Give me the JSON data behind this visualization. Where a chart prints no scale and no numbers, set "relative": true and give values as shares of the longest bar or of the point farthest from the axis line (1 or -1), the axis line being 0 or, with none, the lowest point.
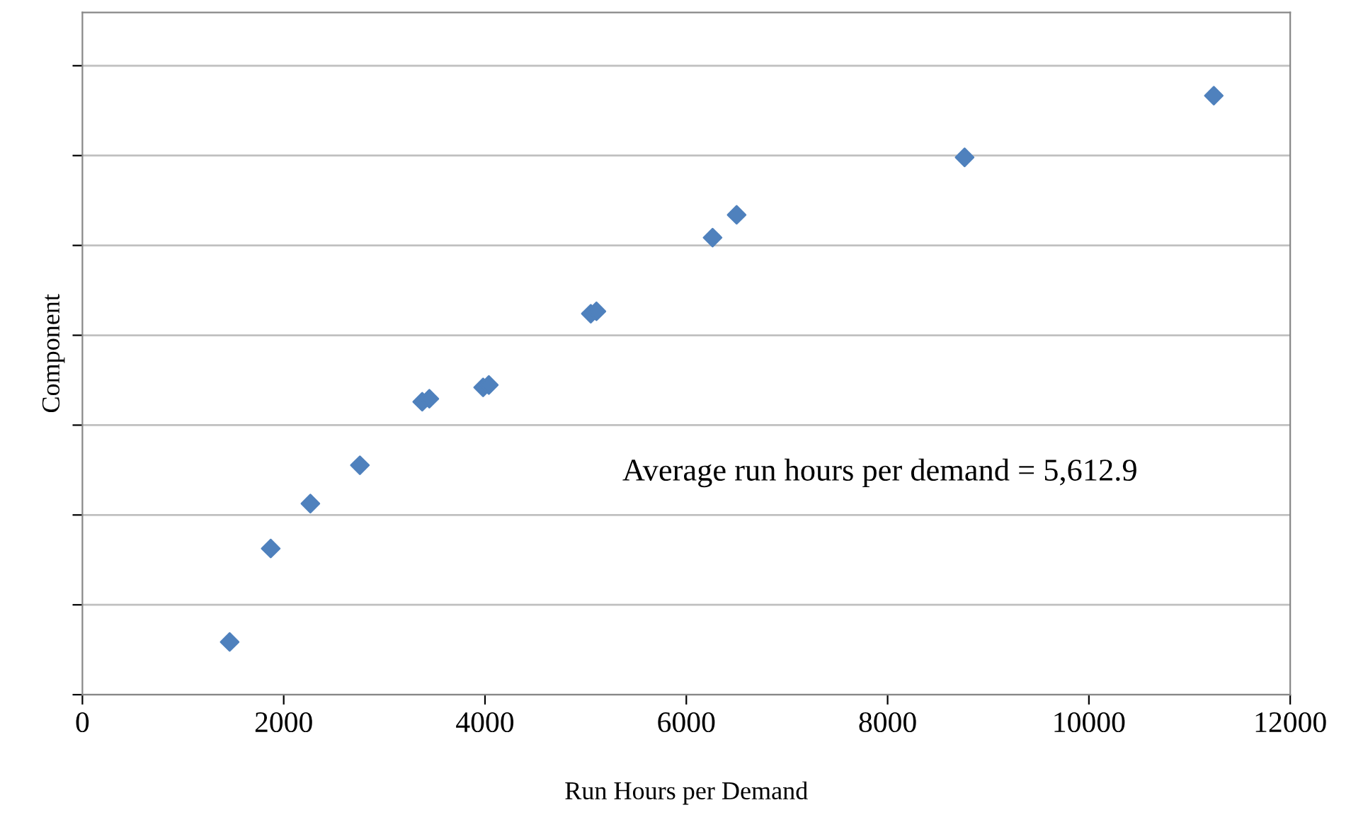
{
  "chart_data": {
    "type": "scatter",
    "xlabel": "Run Hours per Demand",
    "ylabel": "Component",
    "x": [
      1463,
      1871,
      2265,
      2757,
      3376,
      3447,
      3981,
      4038,
      5051,
      5107,
      6261,
      6500,
      8765,
      11241
    ],
    "series": [
      {
        "color": "#4f81bd",
        "values": [
          0.088,
          0.244,
          0.319,
          0.383,
          0.489,
          0.494,
          0.513,
          0.517,
          0.636,
          0.64,
          0.763,
          0.801,
          0.897,
          1
        ]
      }
    ],
    "relative": true,
    "xlim": [
      0,
      12000
    ],
    "xticks": [
      0,
      2000,
      4000,
      6000,
      8000,
      10000,
      12000
    ],
    "tick_labels": "x",
    "grid": "y",
    "marker": "diamond",
    "annotations": [
      "Average run hours per demand = 5,612.9"
    ]
  }
}
